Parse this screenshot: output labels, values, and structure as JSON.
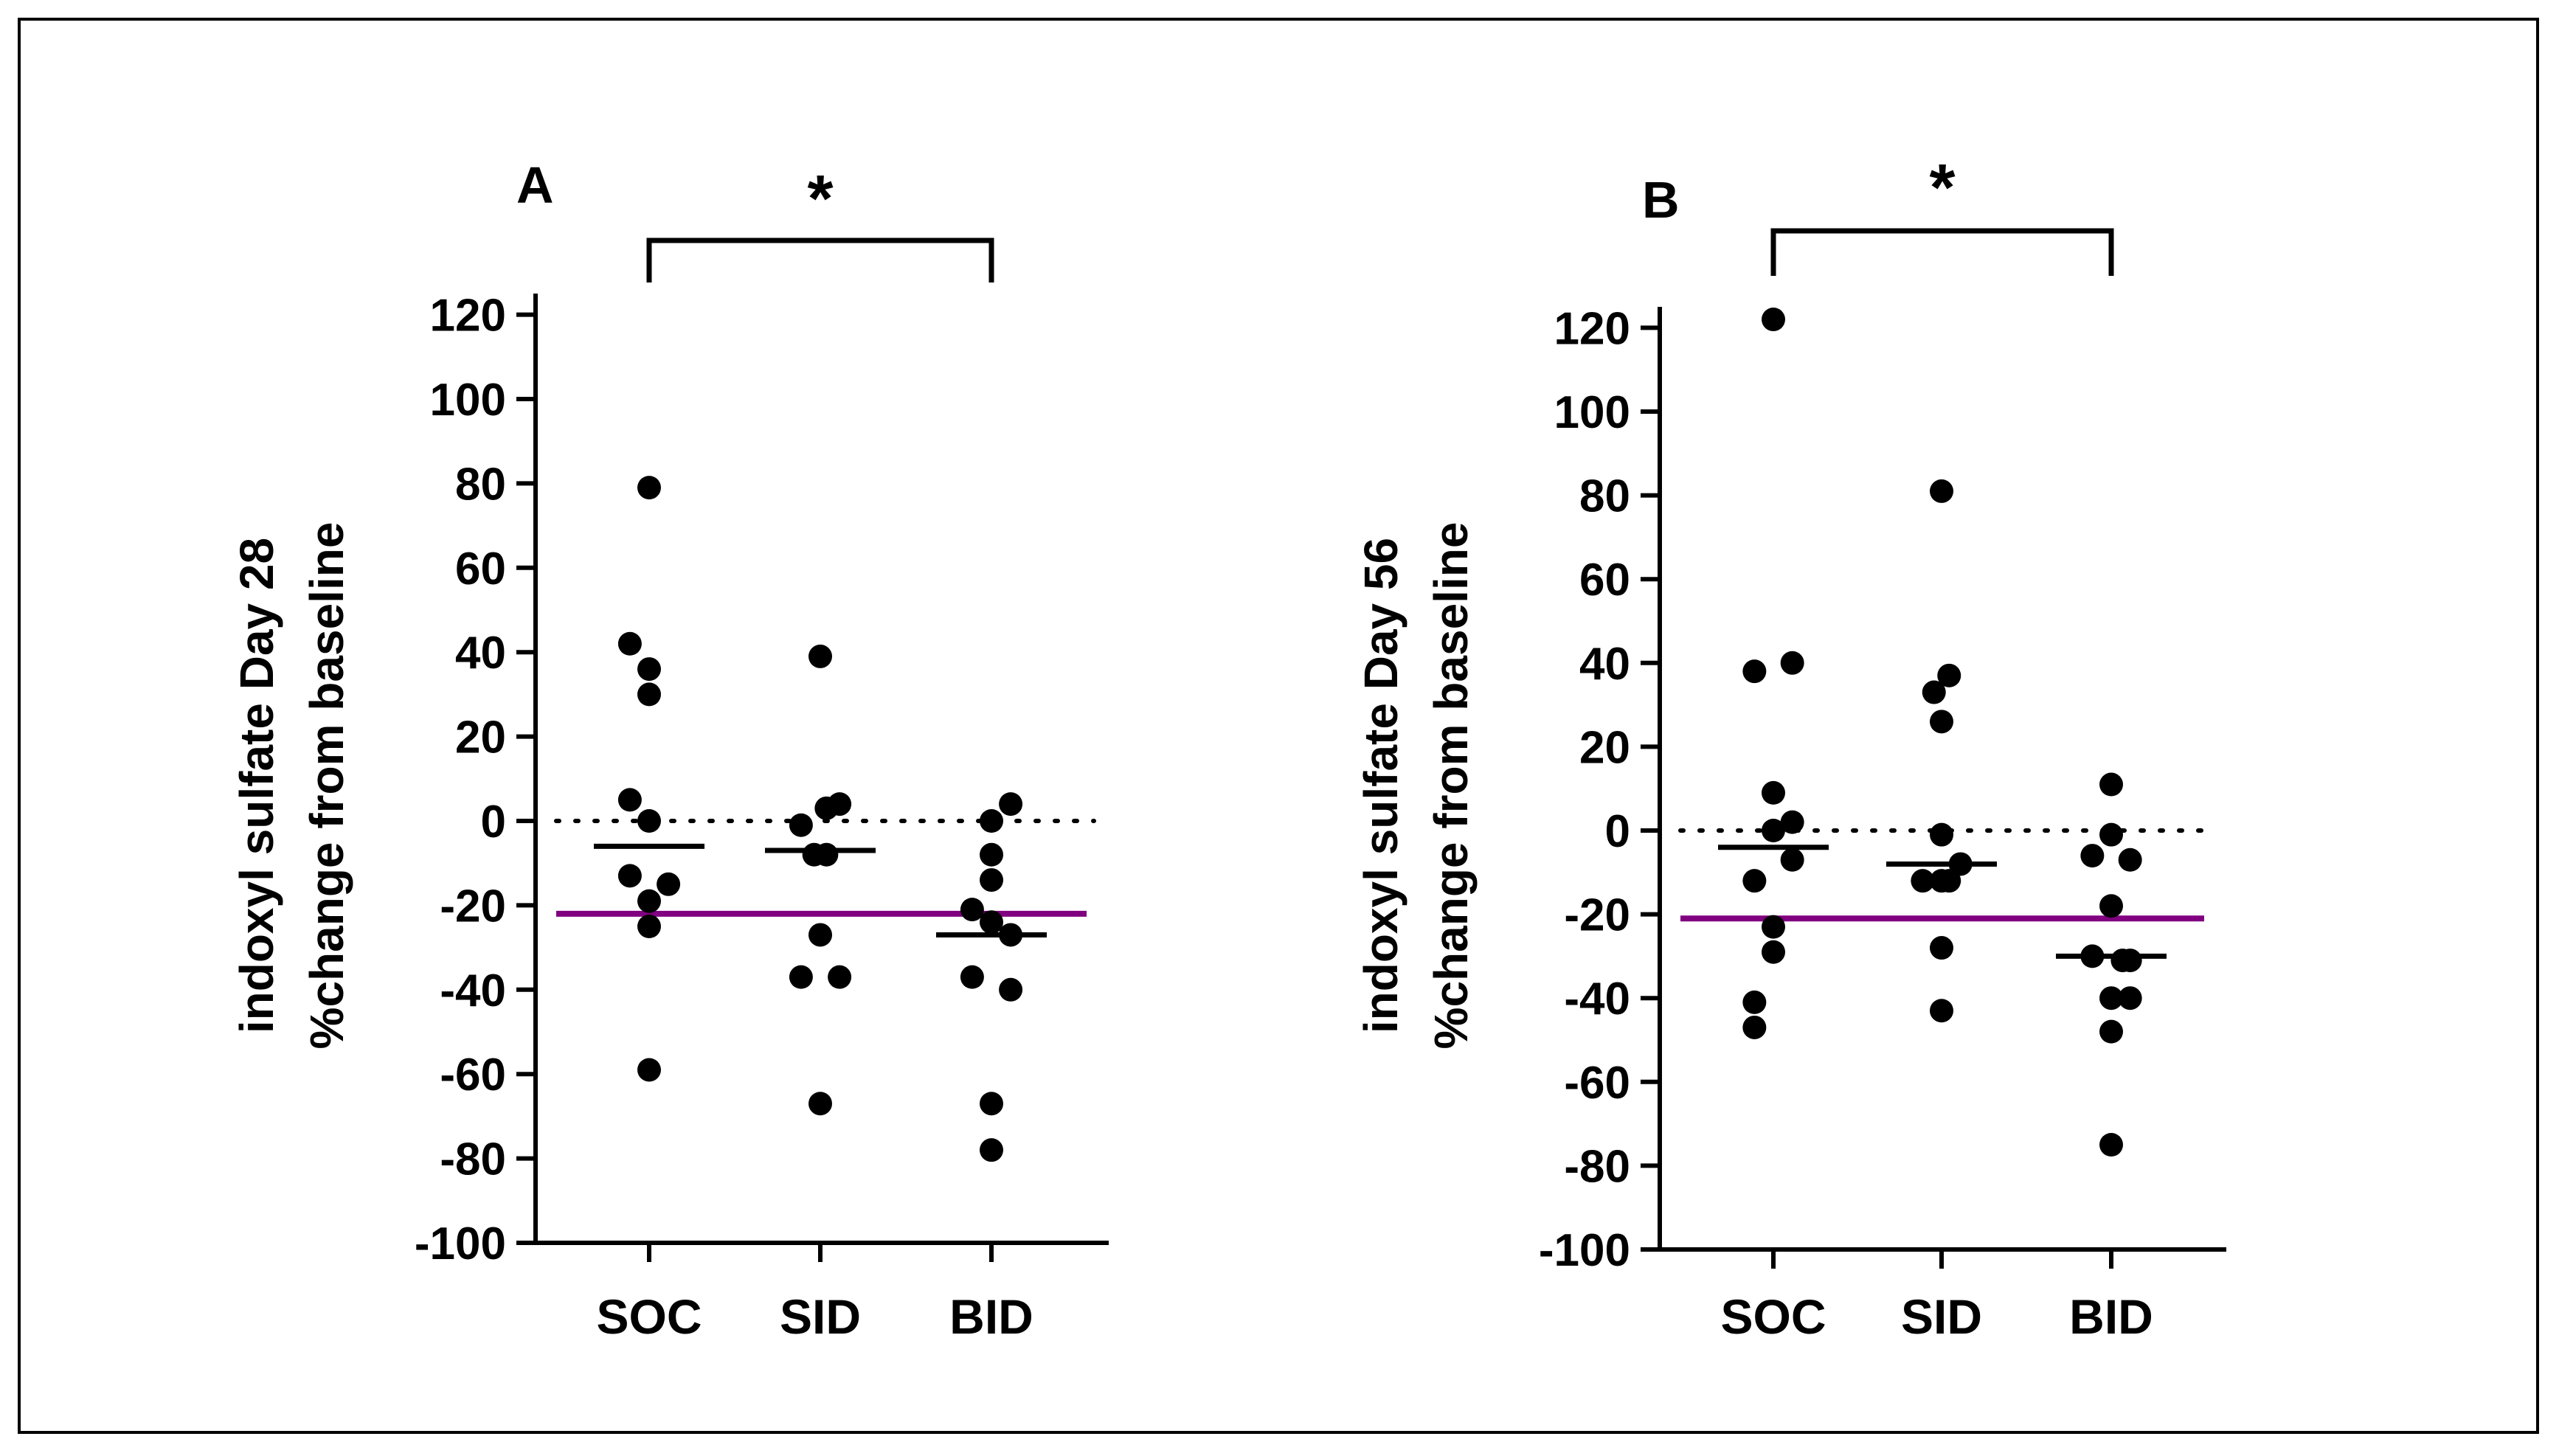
{
  "colors": {
    "axis": "#000000",
    "points": "#000000",
    "reference_line": "#800080"
  },
  "chart_data": [
    {
      "id": "A",
      "type": "scatter",
      "panel_label": "A",
      "title": "",
      "xlabel": "",
      "ylabel_line1": "indoxyl sulfate Day 28",
      "ylabel_line2": "%change from baseline",
      "categories": [
        "SOC",
        "SID",
        "BID"
      ],
      "ylim": [
        -100,
        125
      ],
      "yticks": [
        120,
        100,
        80,
        60,
        40,
        20,
        0,
        -20,
        -40,
        -60,
        -80,
        -100
      ],
      "ytick_labels": [
        "120",
        "100",
        "80",
        "60",
        "40",
        "20",
        "0",
        "-20",
        "-40",
        "-60",
        "-80",
        "-100"
      ],
      "points": [
        [
          {
            "dx": -0.25,
            "y": 42
          },
          {
            "dx": -0.25,
            "y": 5
          },
          {
            "dx": -0.25,
            "y": -13
          },
          {
            "dx": 0.0,
            "y": 79
          },
          {
            "dx": 0.0,
            "y": 36
          },
          {
            "dx": 0.0,
            "y": 30
          },
          {
            "dx": 0.0,
            "y": 0
          },
          {
            "dx": 0.0,
            "y": -19
          },
          {
            "dx": 0.0,
            "y": -25
          },
          {
            "dx": 0.0,
            "y": -59
          },
          {
            "dx": 0.25,
            "y": -15
          }
        ],
        [
          {
            "dx": -0.25,
            "y": -1
          },
          {
            "dx": -0.25,
            "y": -37
          },
          {
            "dx": 0.0,
            "y": 39
          },
          {
            "dx": 0.0,
            "y": -27
          },
          {
            "dx": 0.0,
            "y": -67
          },
          {
            "dx": 0.08,
            "y": -8
          },
          {
            "dx": 0.08,
            "y": 3
          },
          {
            "dx": 0.25,
            "y": 4
          },
          {
            "dx": 0.25,
            "y": -37
          },
          {
            "dx": -0.08,
            "y": -8
          }
        ],
        [
          {
            "dx": -0.25,
            "y": -21
          },
          {
            "dx": -0.25,
            "y": -37
          },
          {
            "dx": 0.0,
            "y": 0
          },
          {
            "dx": 0.0,
            "y": -8
          },
          {
            "dx": 0.0,
            "y": -14
          },
          {
            "dx": 0.0,
            "y": -24
          },
          {
            "dx": 0.0,
            "y": -67
          },
          {
            "dx": 0.0,
            "y": -78
          },
          {
            "dx": 0.25,
            "y": 4
          },
          {
            "dx": 0.25,
            "y": -27
          },
          {
            "dx": 0.25,
            "y": -40
          }
        ]
      ],
      "medians": [
        -6,
        -7,
        -27
      ],
      "reference_y": -22,
      "dotted_zero": true,
      "significance": {
        "from": "SOC",
        "to": "BID",
        "label": "*"
      }
    },
    {
      "id": "B",
      "type": "scatter",
      "panel_label": "B",
      "title": "",
      "xlabel": "",
      "ylabel_line1": "indoxyl sulfate Day 56",
      "ylabel_line2": "%change from baseline",
      "categories": [
        "SOC",
        "SID",
        "BID"
      ],
      "ylim": [
        -100,
        125
      ],
      "yticks": [
        120,
        100,
        80,
        60,
        40,
        20,
        0,
        -20,
        -40,
        -60,
        -80,
        -100
      ],
      "ytick_labels": [
        "120",
        "100",
        "80",
        "60",
        "40",
        "20",
        "0",
        "-20",
        "-40",
        "-60",
        "-80",
        "-100"
      ],
      "points": [
        [
          {
            "dx": -0.25,
            "y": 38
          },
          {
            "dx": -0.25,
            "y": -12
          },
          {
            "dx": -0.25,
            "y": -41
          },
          {
            "dx": -0.25,
            "y": -47
          },
          {
            "dx": 0.0,
            "y": 122
          },
          {
            "dx": 0.0,
            "y": 9
          },
          {
            "dx": 0.0,
            "y": 0
          },
          {
            "dx": 0.0,
            "y": -23
          },
          {
            "dx": 0.0,
            "y": -29
          },
          {
            "dx": 0.25,
            "y": 40
          },
          {
            "dx": 0.25,
            "y": 2
          },
          {
            "dx": 0.25,
            "y": -7
          }
        ],
        [
          {
            "dx": -0.1,
            "y": 33
          },
          {
            "dx": -0.25,
            "y": -12
          },
          {
            "dx": 0.0,
            "y": 81
          },
          {
            "dx": 0.0,
            "y": 26
          },
          {
            "dx": 0.0,
            "y": -1
          },
          {
            "dx": 0.0,
            "y": -12
          },
          {
            "dx": 0.0,
            "y": -28
          },
          {
            "dx": 0.0,
            "y": -43
          },
          {
            "dx": 0.1,
            "y": 37
          },
          {
            "dx": 0.1,
            "y": -12
          },
          {
            "dx": 0.25,
            "y": -8
          }
        ],
        [
          {
            "dx": -0.25,
            "y": -6
          },
          {
            "dx": -0.25,
            "y": -30
          },
          {
            "dx": 0.0,
            "y": 11
          },
          {
            "dx": 0.0,
            "y": -1
          },
          {
            "dx": 0.0,
            "y": -18
          },
          {
            "dx": 0.0,
            "y": -40
          },
          {
            "dx": 0.0,
            "y": -48
          },
          {
            "dx": 0.0,
            "y": -75
          },
          {
            "dx": 0.25,
            "y": -7
          },
          {
            "dx": 0.25,
            "y": -31
          },
          {
            "dx": 0.25,
            "y": -40
          },
          {
            "dx": 0.15,
            "y": -31
          }
        ]
      ],
      "medians": [
        -4,
        -8,
        -30
      ],
      "reference_y": -21,
      "dotted_zero": true,
      "significance": {
        "from": "SOC",
        "to": "BID",
        "label": "*"
      }
    }
  ]
}
